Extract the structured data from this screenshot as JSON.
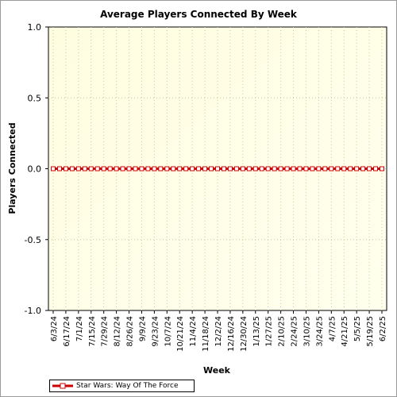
{
  "chart_data": {
    "type": "line",
    "title": "Average Players Connected By Week",
    "xlabel": "Week",
    "ylabel": "Players Connected",
    "ylim": [
      -1.0,
      1.0
    ],
    "yticks": [
      "1.0",
      "0.5",
      "0.0",
      "-0.5",
      "-1.0"
    ],
    "grid": true,
    "legend_position": "bottom-left",
    "x": [
      "6/3/24",
      "6/10/24",
      "6/17/24",
      "6/24/24",
      "7/1/24",
      "7/8/24",
      "7/15/24",
      "7/22/24",
      "7/29/24",
      "8/5/24",
      "8/12/24",
      "8/19/24",
      "8/26/24",
      "9/2/24",
      "9/9/24",
      "9/16/24",
      "9/23/24",
      "9/30/24",
      "10/7/24",
      "10/14/24",
      "10/21/24",
      "10/28/24",
      "11/4/24",
      "11/11/24",
      "11/18/24",
      "11/25/24",
      "12/2/24",
      "12/9/24",
      "12/16/24",
      "12/23/24",
      "12/30/24",
      "1/6/25",
      "1/13/25",
      "1/20/25",
      "1/27/25",
      "2/3/25",
      "2/10/25",
      "2/17/25",
      "2/24/25",
      "3/3/25",
      "3/10/25",
      "3/17/25",
      "3/24/25",
      "3/31/25",
      "4/7/25",
      "4/14/25",
      "4/21/25",
      "4/28/25",
      "5/5/25",
      "5/12/25",
      "5/19/25",
      "5/26/25",
      "6/2/25"
    ],
    "x_tick_labels": [
      "6/3/24",
      "6/17/24",
      "7/1/24",
      "7/15/24",
      "7/29/24",
      "8/12/24",
      "8/26/24",
      "9/9/24",
      "9/23/24",
      "10/7/24",
      "10/21/24",
      "11/4/24",
      "11/18/24",
      "12/2/24",
      "12/16/24",
      "12/30/24",
      "1/13/25",
      "1/27/25",
      "2/10/25",
      "2/24/25",
      "3/10/25",
      "3/24/25",
      "4/7/25",
      "4/21/25",
      "5/5/25",
      "5/19/25",
      "6/2/25"
    ],
    "series": [
      {
        "name": "Star Wars: Way Of The Force",
        "color": "#cc0000",
        "values": [
          0,
          0,
          0,
          0,
          0,
          0,
          0,
          0,
          0,
          0,
          0,
          0,
          0,
          0,
          0,
          0,
          0,
          0,
          0,
          0,
          0,
          0,
          0,
          0,
          0,
          0,
          0,
          0,
          0,
          0,
          0,
          0,
          0,
          0,
          0,
          0,
          0,
          0,
          0,
          0,
          0,
          0,
          0,
          0,
          0,
          0,
          0,
          0,
          0,
          0,
          0,
          0,
          0
        ]
      }
    ]
  }
}
